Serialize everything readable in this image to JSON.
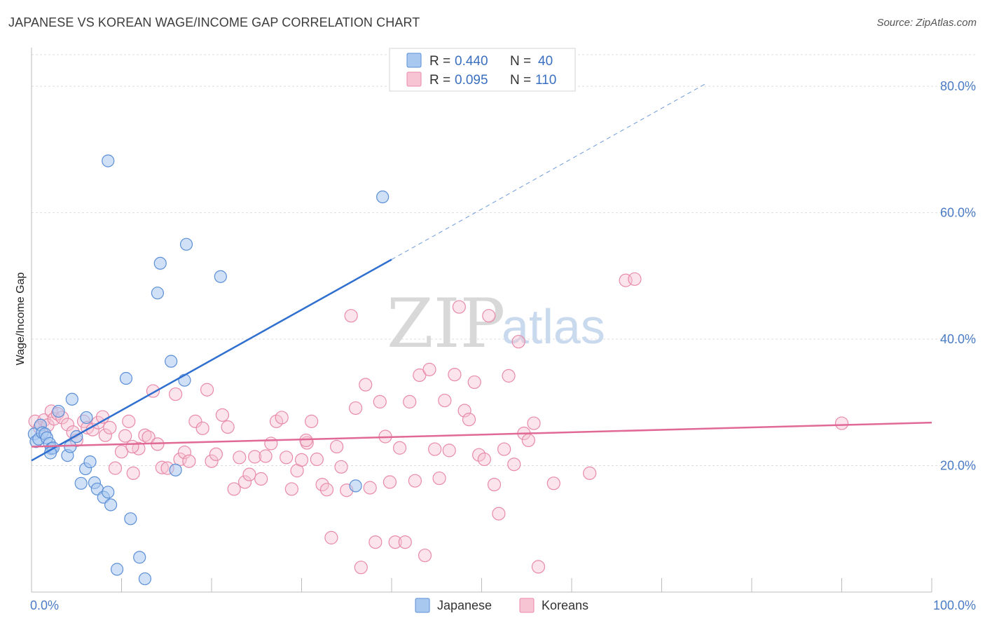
{
  "title": "JAPANESE VS KOREAN WAGE/INCOME GAP CORRELATION CHART",
  "source": "Source: ZipAtlas.com",
  "watermark": {
    "zip": "ZIP",
    "atlas": "atlas"
  },
  "colors": {
    "japanese_fill": "#a9c8f0",
    "japanese_stroke": "#5b8fd6",
    "japanese_line": "#2f6fcf",
    "korean_fill": "#f7c4d3",
    "korean_stroke": "#e88aa9",
    "korean_line": "#e06a95"
  },
  "legend": {
    "rows": [
      {
        "r_label": "R =",
        "r_value": "0.440",
        "n_label": "N =",
        "n_value": "40"
      },
      {
        "r_label": "R =",
        "r_value": "0.095",
        "n_label": "N =",
        "n_value": "110"
      }
    ]
  },
  "chart_data": {
    "type": "scatter",
    "title": "JAPANESE VS KOREAN WAGE/INCOME GAP CORRELATION CHART",
    "xlabel": "",
    "ylabel": "Wage/Income Gap",
    "xlim": [
      0,
      100
    ],
    "ylim": [
      0,
      85
    ],
    "y_ticks": [
      {
        "value": 20,
        "label": "20.0%"
      },
      {
        "value": 40,
        "label": "40.0%"
      },
      {
        "value": 60,
        "label": "60.0%"
      },
      {
        "value": 80,
        "label": "80.0%"
      }
    ],
    "x_ticks": [
      {
        "value": 0,
        "label": "0.0%"
      },
      {
        "value": 100,
        "label": "100.0%"
      }
    ],
    "legend_position": "top-center",
    "series": [
      {
        "name": "Japanese",
        "r": 0.44,
        "n": 40,
        "trend": {
          "x0": 0,
          "y0": 20.8,
          "x1": 40,
          "y1": 52.6,
          "dashed_to_x": 75,
          "dashed_to_y": 80.5
        },
        "points": [
          [
            0.3,
            25.0
          ],
          [
            0.5,
            23.8
          ],
          [
            0.8,
            24.2
          ],
          [
            1.0,
            26.4
          ],
          [
            1.2,
            25.2
          ],
          [
            1.5,
            25.0
          ],
          [
            1.7,
            24.4
          ],
          [
            2.0,
            23.5
          ],
          [
            2.2,
            22.7
          ],
          [
            2.4,
            22.8
          ],
          [
            2.1,
            22.0
          ],
          [
            3.0,
            28.6
          ],
          [
            4.0,
            21.6
          ],
          [
            4.3,
            23.0
          ],
          [
            4.5,
            30.5
          ],
          [
            5.0,
            24.6
          ],
          [
            5.5,
            17.2
          ],
          [
            6.0,
            19.5
          ],
          [
            6.1,
            27.6
          ],
          [
            6.5,
            20.6
          ],
          [
            7.0,
            17.3
          ],
          [
            7.3,
            16.3
          ],
          [
            8.0,
            15.0
          ],
          [
            8.5,
            15.8
          ],
          [
            8.8,
            13.8
          ],
          [
            9.5,
            3.6
          ],
          [
            10.5,
            33.8
          ],
          [
            11.0,
            11.6
          ],
          [
            12.0,
            5.5
          ],
          [
            12.6,
            2.1
          ],
          [
            8.5,
            68.2
          ],
          [
            14.0,
            47.3
          ],
          [
            14.3,
            52.0
          ],
          [
            15.5,
            36.5
          ],
          [
            16.0,
            19.3
          ],
          [
            17.0,
            33.5
          ],
          [
            17.2,
            55.0
          ],
          [
            21.0,
            49.9
          ],
          [
            39.0,
            62.5
          ],
          [
            36.0,
            16.8
          ]
        ]
      },
      {
        "name": "Koreans",
        "r": 0.095,
        "n": 110,
        "trend": {
          "x0": 0,
          "y0": 23.0,
          "x1": 100,
          "y1": 26.8
        },
        "points": [
          [
            0.4,
            27.0
          ],
          [
            0.9,
            26.0
          ],
          [
            1.4,
            27.2
          ],
          [
            1.8,
            26.4
          ],
          [
            2.2,
            28.6
          ],
          [
            2.5,
            27.4
          ],
          [
            2.9,
            28.2
          ],
          [
            3.4,
            27.6
          ],
          [
            4.0,
            26.5
          ],
          [
            4.6,
            25.3
          ],
          [
            5.0,
            24.0
          ],
          [
            5.8,
            27.0
          ],
          [
            6.2,
            26.0
          ],
          [
            6.8,
            25.7
          ],
          [
            7.4,
            26.8
          ],
          [
            7.9,
            27.7
          ],
          [
            8.2,
            24.8
          ],
          [
            8.7,
            26.0
          ],
          [
            9.3,
            19.6
          ],
          [
            10.0,
            22.2
          ],
          [
            10.4,
            24.7
          ],
          [
            10.8,
            27.0
          ],
          [
            11.3,
            18.8
          ],
          [
            11.9,
            22.7
          ],
          [
            12.6,
            24.8
          ],
          [
            13.0,
            24.5
          ],
          [
            13.5,
            31.8
          ],
          [
            14.0,
            23.4
          ],
          [
            14.5,
            19.7
          ],
          [
            15.1,
            19.6
          ],
          [
            16.0,
            31.3
          ],
          [
            16.5,
            21.0
          ],
          [
            17.0,
            22.1
          ],
          [
            17.5,
            20.7
          ],
          [
            18.2,
            27.0
          ],
          [
            19.0,
            25.9
          ],
          [
            19.5,
            32.0
          ],
          [
            20.0,
            20.7
          ],
          [
            20.5,
            21.8
          ],
          [
            21.2,
            28.0
          ],
          [
            21.8,
            26.1
          ],
          [
            22.5,
            16.3
          ],
          [
            23.1,
            21.3
          ],
          [
            23.7,
            17.4
          ],
          [
            24.2,
            18.6
          ],
          [
            24.8,
            21.4
          ],
          [
            25.5,
            17.9
          ],
          [
            26.0,
            21.5
          ],
          [
            26.6,
            23.5
          ],
          [
            27.2,
            27.0
          ],
          [
            27.8,
            27.6
          ],
          [
            28.3,
            21.3
          ],
          [
            28.9,
            16.3
          ],
          [
            29.5,
            19.2
          ],
          [
            30.0,
            20.9
          ],
          [
            30.6,
            23.6
          ],
          [
            31.1,
            27.0
          ],
          [
            31.7,
            21.0
          ],
          [
            32.3,
            17.0
          ],
          [
            32.8,
            16.2
          ],
          [
            33.3,
            8.6
          ],
          [
            33.9,
            23.0
          ],
          [
            34.4,
            19.8
          ],
          [
            35.0,
            16.1
          ],
          [
            35.5,
            43.7
          ],
          [
            36.0,
            29.1
          ],
          [
            36.6,
            3.9
          ],
          [
            37.1,
            32.8
          ],
          [
            37.6,
            16.5
          ],
          [
            38.2,
            7.9
          ],
          [
            38.7,
            30.1
          ],
          [
            39.3,
            24.6
          ],
          [
            39.8,
            17.4
          ],
          [
            40.4,
            7.9
          ],
          [
            40.9,
            22.8
          ],
          [
            41.5,
            7.9
          ],
          [
            42.0,
            30.1
          ],
          [
            42.6,
            17.6
          ],
          [
            43.1,
            34.3
          ],
          [
            43.7,
            5.8
          ],
          [
            44.2,
            35.2
          ],
          [
            44.8,
            22.6
          ],
          [
            45.3,
            18.0
          ],
          [
            45.9,
            30.3
          ],
          [
            46.4,
            22.4
          ],
          [
            47.0,
            34.4
          ],
          [
            47.5,
            45.1
          ],
          [
            48.1,
            28.7
          ],
          [
            48.6,
            27.3
          ],
          [
            49.2,
            33.2
          ],
          [
            49.7,
            21.7
          ],
          [
            50.3,
            21.0
          ],
          [
            50.8,
            43.7
          ],
          [
            51.4,
            17.0
          ],
          [
            51.9,
            12.4
          ],
          [
            52.5,
            22.6
          ],
          [
            53.0,
            34.2
          ],
          [
            53.6,
            20.2
          ],
          [
            54.1,
            39.6
          ],
          [
            54.7,
            25.1
          ],
          [
            55.2,
            24.0
          ],
          [
            55.8,
            26.7
          ],
          [
            56.3,
            4.0
          ],
          [
            58.0,
            17.2
          ],
          [
            62.0,
            18.8
          ],
          [
            66.0,
            49.3
          ],
          [
            67.0,
            49.5
          ],
          [
            90.0,
            26.7
          ],
          [
            11.2,
            23.0
          ],
          [
            30.5,
            24.0
          ]
        ]
      }
    ]
  },
  "bottom_legend": [
    {
      "label": "Japanese"
    },
    {
      "label": "Koreans"
    }
  ]
}
